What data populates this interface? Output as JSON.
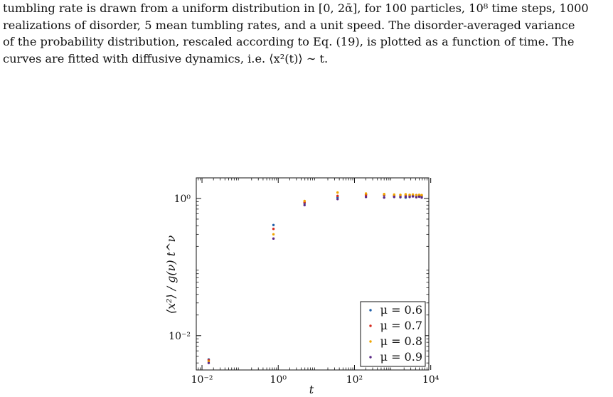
{
  "caption": {
    "line1": "tumbling rate is drawn from a uniform distribution in [0, 2ᾱ], for 100 particles, 10⁸ time steps, 1000",
    "line2": "realizations of disorder, 5 mean tumbling rates, and a unit speed. The disorder-averaged variance",
    "line3": "of the probability distribution, rescaled according to Eq. (19), is plotted as a function of time. The",
    "line4": "curves are fitted with diffusive dynamics, i.e. ⟨x²(t)⟩ ∼ t."
  },
  "chart_data": {
    "type": "scatter",
    "xlabel": "t",
    "ylabel": "⟨x²⟩ / g(ν) t^ν",
    "xscale": "log",
    "yscale": "log",
    "xlim_log10": [
      -2.15,
      3.95
    ],
    "ylim_log10": [
      -2.5,
      0.3
    ],
    "x_ticks": [
      {
        "exp": -2,
        "label": "10⁻²"
      },
      {
        "exp": 0,
        "label": "10⁰"
      },
      {
        "exp": 2,
        "label": "10²"
      },
      {
        "exp": 4,
        "label": "10⁴"
      }
    ],
    "y_ticks": [
      {
        "exp": -2,
        "label": "10⁻²"
      },
      {
        "exp": 0,
        "label": "10⁰"
      }
    ],
    "legend_position": "bottom-right",
    "series": [
      {
        "name": "μ = 0.6",
        "color": "#1f5fa8",
        "points": [
          [
            0.015,
            0.0045
          ],
          [
            0.75,
            0.41
          ],
          [
            4.9,
            0.85
          ],
          [
            36,
            1.04
          ],
          [
            200,
            1.14
          ],
          [
            600,
            1.11
          ],
          [
            1100,
            1.08
          ],
          [
            1600,
            1.06
          ],
          [
            2200,
            1.03
          ],
          [
            2800,
            1.09
          ],
          [
            3400,
            1.1
          ],
          [
            4200,
            1.06
          ],
          [
            5000,
            1.1
          ],
          [
            5800,
            1.07
          ]
        ]
      },
      {
        "name": "μ = 0.7",
        "color": "#d62b1f",
        "points": [
          [
            0.015,
            0.0044
          ],
          [
            0.75,
            0.36
          ],
          [
            4.9,
            0.88
          ],
          [
            36,
            1.09
          ],
          [
            200,
            1.12
          ],
          [
            600,
            1.13
          ],
          [
            1100,
            1.1
          ],
          [
            1600,
            1.12
          ],
          [
            2200,
            1.11
          ],
          [
            2800,
            1.12
          ],
          [
            3400,
            1.09
          ],
          [
            4200,
            1.12
          ],
          [
            5000,
            1.08
          ],
          [
            5800,
            1.11
          ]
        ]
      },
      {
        "name": "μ = 0.8",
        "color": "#f0a500",
        "points": [
          [
            0.015,
            0.0042
          ],
          [
            0.75,
            0.3
          ],
          [
            4.9,
            0.92
          ],
          [
            36,
            1.22
          ],
          [
            200,
            1.18
          ],
          [
            600,
            1.16
          ],
          [
            1100,
            1.14
          ],
          [
            1600,
            1.13
          ],
          [
            2200,
            1.15
          ],
          [
            2800,
            1.13
          ],
          [
            3400,
            1.14
          ],
          [
            4200,
            1.11
          ],
          [
            5000,
            1.13
          ],
          [
            5800,
            1.12
          ]
        ]
      },
      {
        "name": "μ = 0.9",
        "color": "#5b2a86",
        "points": [
          [
            0.015,
            0.004
          ],
          [
            0.75,
            0.26
          ],
          [
            4.9,
            0.8
          ],
          [
            36,
            0.98
          ],
          [
            200,
            1.05
          ],
          [
            600,
            1.03
          ],
          [
            1100,
            1.05
          ],
          [
            1600,
            1.04
          ],
          [
            2200,
            1.06
          ],
          [
            2800,
            1.05
          ],
          [
            3400,
            1.07
          ],
          [
            4200,
            1.04
          ],
          [
            5000,
            1.06
          ],
          [
            5800,
            1.03
          ]
        ]
      }
    ]
  }
}
